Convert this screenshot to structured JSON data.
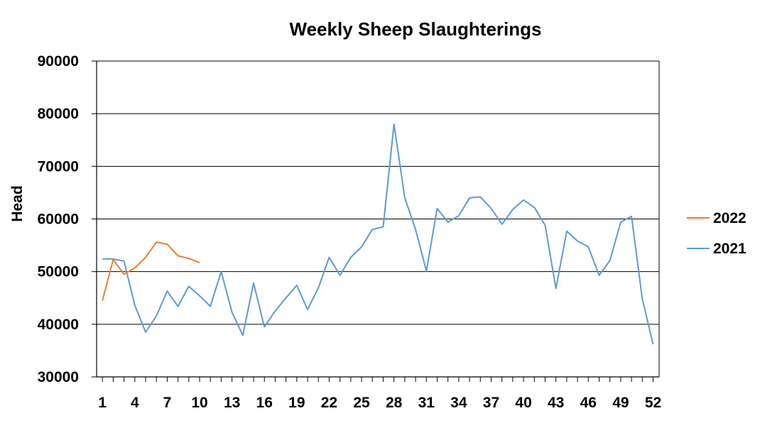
{
  "chart_data": {
    "type": "line",
    "title": "Weekly Sheep Slaughterings",
    "xlabel": "",
    "ylabel": "Head",
    "ylim": [
      30000,
      90000
    ],
    "yticks": [
      30000,
      40000,
      50000,
      60000,
      70000,
      80000,
      90000
    ],
    "xlim": [
      1,
      52
    ],
    "xticks": [
      1,
      4,
      7,
      10,
      13,
      16,
      19,
      22,
      25,
      28,
      31,
      34,
      37,
      40,
      43,
      46,
      49,
      52
    ],
    "grid": "horizontal",
    "legend_position": "right",
    "series": [
      {
        "name": "2022",
        "color": "#ed7d31",
        "x": [
          1,
          2,
          3,
          4,
          5,
          6,
          7,
          8,
          9,
          10
        ],
        "values": [
          44500,
          52300,
          49500,
          50700,
          52700,
          55600,
          55200,
          53000,
          52500,
          51700
        ]
      },
      {
        "name": "2021",
        "color": "#5b9bd5",
        "x": [
          1,
          2,
          3,
          4,
          5,
          6,
          7,
          8,
          9,
          10,
          11,
          12,
          13,
          14,
          15,
          16,
          17,
          18,
          19,
          20,
          21,
          22,
          23,
          24,
          25,
          26,
          27,
          28,
          29,
          30,
          31,
          32,
          33,
          34,
          35,
          36,
          37,
          38,
          39,
          40,
          41,
          42,
          43,
          44,
          45,
          46,
          47,
          48,
          49,
          50,
          51,
          52
        ],
        "values": [
          52400,
          52400,
          52000,
          43600,
          38500,
          41600,
          46300,
          43400,
          47200,
          45400,
          43400,
          50000,
          42300,
          37900,
          47800,
          39500,
          42500,
          45000,
          47400,
          42800,
          46900,
          52700,
          49300,
          52700,
          54700,
          58000,
          58500,
          78000,
          64000,
          58000,
          50100,
          62000,
          59400,
          60600,
          64000,
          64200,
          62000,
          59000,
          61800,
          63600,
          62200,
          58800,
          46800,
          57700,
          55800,
          54700,
          49300,
          52100,
          59400,
          60500,
          44800,
          36200
        ]
      }
    ]
  }
}
